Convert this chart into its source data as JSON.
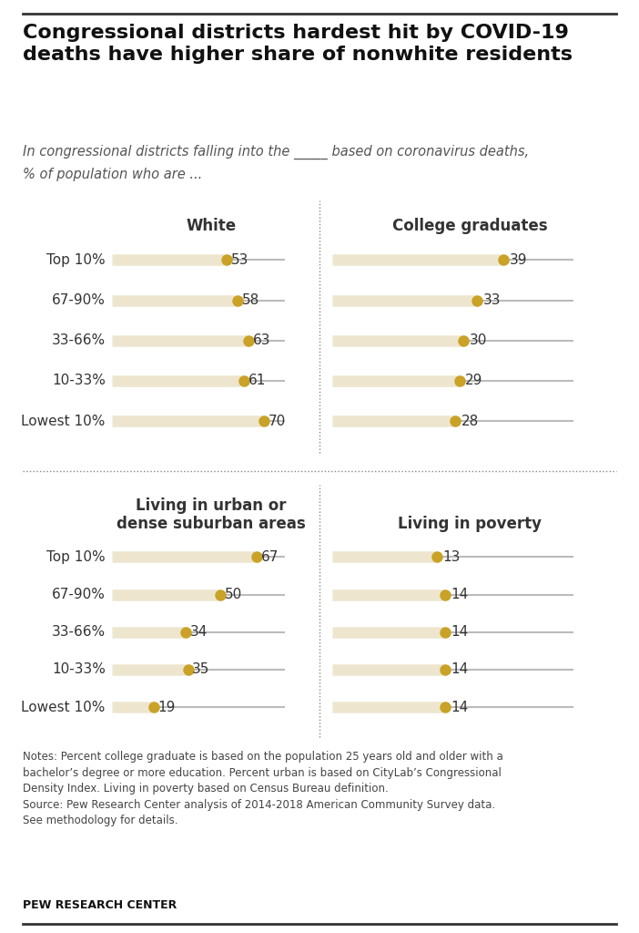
{
  "title": "Congressional districts hardest hit by COVID-19\ndeaths have higher share of nonwhite residents",
  "subtitle_line1": "In congressional districts falling into the _____ based on coronavirus deaths,",
  "subtitle_line2": "% of population who are ...",
  "categories": [
    "Top 10%",
    "67-90%",
    "33-66%",
    "10-33%",
    "Lowest 10%"
  ],
  "panels": [
    {
      "title": "White",
      "values": [
        53,
        58,
        63,
        61,
        70
      ],
      "xmax": 80
    },
    {
      "title": "College graduates",
      "values": [
        39,
        33,
        30,
        29,
        28
      ],
      "xmax": 55
    },
    {
      "title": "Living in urban or\ndense suburban areas",
      "values": [
        67,
        50,
        34,
        35,
        19
      ],
      "xmax": 80
    },
    {
      "title": "Living in poverty",
      "values": [
        13,
        14,
        14,
        14,
        14
      ],
      "xmax": 30
    }
  ],
  "dot_color": "#C9A227",
  "line_color_thick": "#EDE5CE",
  "line_color_thin": "#BBBBBB",
  "text_color": "#333333",
  "bg_color": "#FFFFFF",
  "notes_text": "Notes: Percent college graduate is based on the population 25 years old and older with a\nbachelor’s degree or more education. Percent urban is based on CityLab’s Congressional\nDensity Index. Living in poverty based on Census Bureau definition.\nSource: Pew Research Center analysis of 2014-2018 American Community Survey data.\nSee methodology for details.",
  "source_label": "PEW RESEARCH CENTER",
  "title_fontsize": 16,
  "subtitle_fontsize": 10.5,
  "label_fontsize": 11,
  "value_fontsize": 11,
  "panel_title_fontsize": 12,
  "notes_fontsize": 8.5,
  "source_fontsize": 9
}
